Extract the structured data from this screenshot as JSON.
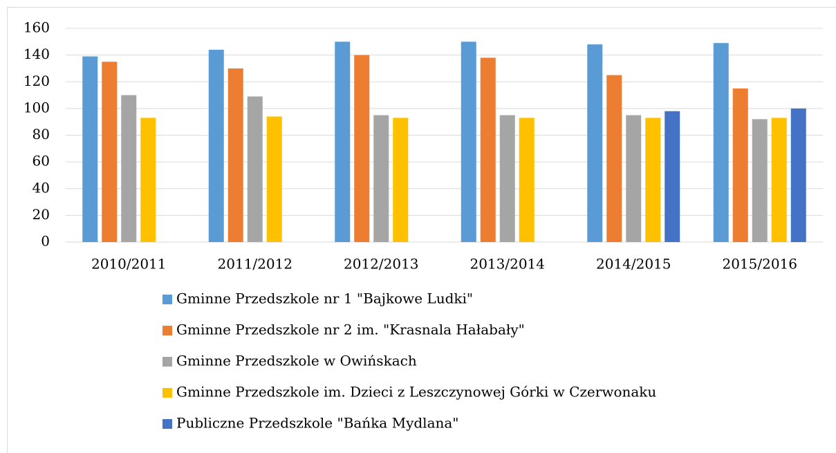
{
  "chart_data": {
    "type": "bar",
    "categories": [
      "2010/2011",
      "2011/2012",
      "2012/2013",
      "2013/2014",
      "2014/2015",
      "2015/2016"
    ],
    "series": [
      {
        "name": "Gminne Przedszkole nr 1 \"Bajkowe Ludki\"",
        "color": "#5b9bd5",
        "values": [
          139,
          144,
          150,
          150,
          148,
          149
        ]
      },
      {
        "name": "Gminne Przedszkole nr 2 im. \"Krasnala Hałabały\"",
        "color": "#ed7d31",
        "values": [
          135,
          130,
          140,
          138,
          125,
          115
        ]
      },
      {
        "name": "Gminne Przedszkole w Owińskach",
        "color": "#a5a5a5",
        "values": [
          110,
          109,
          95,
          95,
          95,
          92
        ]
      },
      {
        "name": "Gminne Przedszkole im. Dzieci z Leszczynowej Górki w Czerwonaku",
        "color": "#ffc000",
        "values": [
          93,
          94,
          93,
          93,
          93,
          93
        ]
      },
      {
        "name": "Publiczne Przedszkole \"Bańka Mydlana\"",
        "color": "#4472c4",
        "values": [
          null,
          null,
          null,
          null,
          98,
          100
        ]
      }
    ],
    "ylim": [
      0,
      160
    ],
    "yticks": [
      0,
      20,
      40,
      60,
      80,
      100,
      120,
      140,
      160
    ],
    "grid": true,
    "legend": "bottom"
  }
}
